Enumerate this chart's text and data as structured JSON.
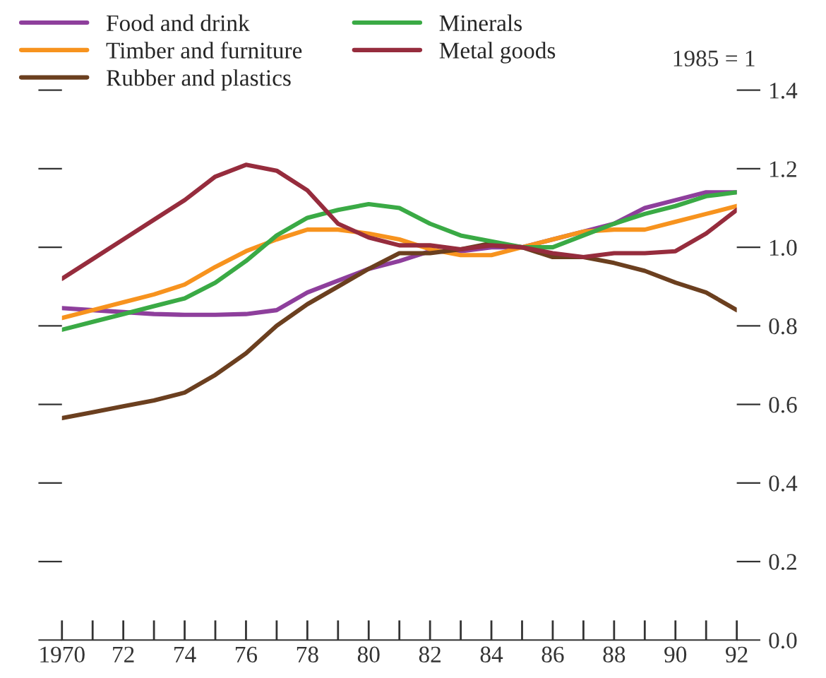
{
  "chart_data": {
    "type": "line",
    "x": [
      1970,
      1971,
      1972,
      1973,
      1974,
      1975,
      1976,
      1977,
      1978,
      1979,
      1980,
      1981,
      1982,
      1983,
      1984,
      1985,
      1986,
      1987,
      1988,
      1989,
      1990,
      1991,
      1992
    ],
    "series": [
      {
        "name": "Food and drink",
        "color": "#8e3f9c",
        "values": [
          0.845,
          0.84,
          0.835,
          0.83,
          0.828,
          0.828,
          0.83,
          0.84,
          0.885,
          0.915,
          0.945,
          0.965,
          0.99,
          0.99,
          1.0,
          1.0,
          1.02,
          1.04,
          1.06,
          1.1,
          1.12,
          1.14,
          1.14
        ]
      },
      {
        "name": "Timber and furniture",
        "color": "#f7931e",
        "values": [
          0.82,
          0.84,
          0.86,
          0.88,
          0.905,
          0.95,
          0.99,
          1.02,
          1.045,
          1.045,
          1.035,
          1.02,
          0.995,
          0.98,
          0.98,
          1.0,
          1.02,
          1.04,
          1.045,
          1.045,
          1.065,
          1.085,
          1.105
        ]
      },
      {
        "name": "Rubber and plastics",
        "color": "#6b3f1f",
        "values": [
          0.565,
          0.58,
          0.595,
          0.61,
          0.63,
          0.675,
          0.73,
          0.8,
          0.855,
          0.9,
          0.945,
          0.985,
          0.985,
          0.995,
          1.01,
          1.0,
          0.975,
          0.975,
          0.96,
          0.94,
          0.91,
          0.885,
          0.84
        ]
      },
      {
        "name": "Minerals",
        "color": "#3aaa45",
        "values": [
          0.79,
          0.81,
          0.83,
          0.85,
          0.87,
          0.91,
          0.965,
          1.03,
          1.075,
          1.095,
          1.11,
          1.1,
          1.06,
          1.03,
          1.015,
          1.0,
          1.0,
          1.03,
          1.06,
          1.085,
          1.105,
          1.13,
          1.14
        ]
      },
      {
        "name": "Metal goods",
        "color": "#962c3d",
        "values": [
          0.92,
          0.97,
          1.02,
          1.07,
          1.12,
          1.18,
          1.21,
          1.195,
          1.145,
          1.06,
          1.025,
          1.005,
          1.005,
          0.995,
          1.005,
          1.0,
          0.985,
          0.975,
          0.985,
          0.985,
          0.99,
          1.035,
          1.095
        ]
      }
    ],
    "xlim": [
      1970,
      1992
    ],
    "xticks": [
      {
        "value": 1970,
        "label": "1970"
      },
      {
        "value": 1971,
        "label": null
      },
      {
        "value": 1972,
        "label": "72"
      },
      {
        "value": 1973,
        "label": null
      },
      {
        "value": 1974,
        "label": "74"
      },
      {
        "value": 1975,
        "label": null
      },
      {
        "value": 1976,
        "label": "76"
      },
      {
        "value": 1977,
        "label": null
      },
      {
        "value": 1978,
        "label": "78"
      },
      {
        "value": 1979,
        "label": null
      },
      {
        "value": 1980,
        "label": "80"
      },
      {
        "value": 1981,
        "label": null
      },
      {
        "value": 1982,
        "label": "82"
      },
      {
        "value": 1983,
        "label": null
      },
      {
        "value": 1984,
        "label": "84"
      },
      {
        "value": 1985,
        "label": null
      },
      {
        "value": 1986,
        "label": "86"
      },
      {
        "value": 1987,
        "label": null
      },
      {
        "value": 1988,
        "label": "88"
      },
      {
        "value": 1989,
        "label": null
      },
      {
        "value": 1990,
        "label": "90"
      },
      {
        "value": 1991,
        "label": null
      },
      {
        "value": 1992,
        "label": "92"
      }
    ],
    "ylim": [
      0,
      1.4
    ],
    "yticks": [
      {
        "value": 0,
        "label": "0.0"
      },
      {
        "value": 0.2,
        "label": "0.2"
      },
      {
        "value": 0.4,
        "label": "0.4"
      },
      {
        "value": 0.6,
        "label": "0.6"
      },
      {
        "value": 0.8,
        "label": "0.8"
      },
      {
        "value": 1.0,
        "label": "1.0"
      },
      {
        "value": 1.2,
        "label": "1.2"
      },
      {
        "value": 1.4,
        "label": "1.4"
      }
    ],
    "annotations": [
      "1985 = 1"
    ],
    "legend": "top left",
    "grid": false,
    "marker": "none",
    "line_style": "solid"
  }
}
